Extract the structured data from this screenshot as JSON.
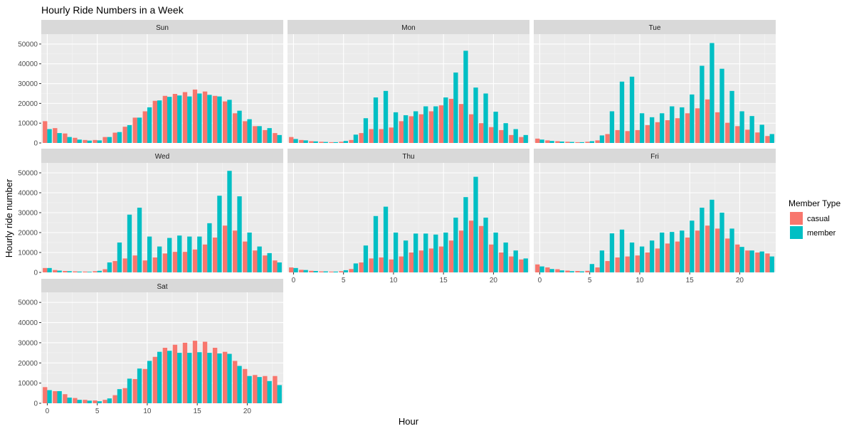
{
  "chart_data": {
    "type": "bar",
    "title": "Hourly Ride Numbers in a Week",
    "xlabel": "Hour",
    "ylabel": "Hourly ride number",
    "ylim": [
      0,
      55000
    ],
    "y_ticks": [
      0,
      10000,
      20000,
      30000,
      40000,
      50000
    ],
    "x_ticks": [
      0,
      5,
      10,
      15,
      20
    ],
    "hours": [
      0,
      1,
      2,
      3,
      4,
      5,
      6,
      7,
      8,
      9,
      10,
      11,
      12,
      13,
      14,
      15,
      16,
      17,
      18,
      19,
      20,
      21,
      22,
      23
    ],
    "grid": true,
    "facet_layout": "3x3 facet grid, panels Sun–Tue, Wed–Fri, Sat",
    "legend": {
      "title": "Member Type",
      "position": "right",
      "entries": [
        {
          "name": "casual",
          "color": "#F8766D"
        },
        {
          "name": "member",
          "color": "#00BFC4"
        }
      ]
    },
    "facets": [
      {
        "day": "Sun",
        "casual": [
          11000,
          7500,
          4800,
          2600,
          1500,
          1500,
          3000,
          5200,
          8200,
          12800,
          16000,
          21300,
          23800,
          24800,
          25700,
          27000,
          26000,
          23800,
          21000,
          15000,
          11000,
          8500,
          6500,
          5000
        ],
        "member": [
          7000,
          5000,
          3000,
          1700,
          1200,
          1300,
          3000,
          5500,
          9000,
          12800,
          18000,
          21500,
          23300,
          24000,
          23500,
          25000,
          24300,
          23500,
          21800,
          16300,
          12000,
          8500,
          7500,
          4000
        ]
      },
      {
        "day": "Mon",
        "casual": [
          3000,
          1500,
          900,
          600,
          400,
          600,
          1500,
          5000,
          7000,
          7000,
          7800,
          11000,
          13500,
          14500,
          16000,
          19000,
          22300,
          19700,
          14500,
          10000,
          8000,
          6500,
          4000,
          3000
        ],
        "member": [
          2000,
          1300,
          800,
          500,
          400,
          1000,
          4200,
          12500,
          23000,
          26300,
          15500,
          14000,
          16000,
          18500,
          18500,
          23000,
          35600,
          46600,
          28000,
          25000,
          15800,
          10000,
          7000,
          4000
        ]
      },
      {
        "day": "Tue",
        "casual": [
          2200,
          1300,
          900,
          600,
          400,
          600,
          1300,
          4500,
          6500,
          6000,
          6500,
          9000,
          10500,
          11500,
          12500,
          15000,
          17500,
          22000,
          15500,
          10200,
          8500,
          6700,
          5300,
          3500
        ],
        "member": [
          1700,
          1000,
          700,
          500,
          400,
          900,
          3800,
          16000,
          31000,
          33500,
          15000,
          13000,
          15000,
          18500,
          18000,
          24500,
          39000,
          50500,
          37500,
          26300,
          16000,
          13600,
          9200,
          4500
        ]
      },
      {
        "day": "Wed",
        "casual": [
          2200,
          1200,
          700,
          500,
          400,
          600,
          1600,
          5700,
          7000,
          8500,
          6000,
          7500,
          9500,
          10300,
          10300,
          11500,
          14000,
          17500,
          23500,
          21000,
          15500,
          11000,
          8500,
          6000
        ],
        "member": [
          2200,
          900,
          600,
          400,
          300,
          800,
          5000,
          15000,
          29000,
          32500,
          18000,
          13000,
          17300,
          18500,
          18000,
          18000,
          24700,
          38500,
          51000,
          38200,
          20000,
          13000,
          9700,
          5000
        ]
      },
      {
        "day": "Thu",
        "casual": [
          2500,
          1300,
          800,
          500,
          400,
          600,
          1700,
          5000,
          7000,
          7500,
          6500,
          8000,
          10000,
          11000,
          12000,
          13000,
          16000,
          21000,
          26000,
          23300,
          14000,
          10000,
          8000,
          6500
        ],
        "member": [
          2200,
          1200,
          700,
          500,
          400,
          1100,
          4500,
          13500,
          28300,
          33000,
          20000,
          16000,
          19500,
          19500,
          19000,
          20000,
          27500,
          37800,
          48000,
          27500,
          20000,
          15000,
          11000,
          7000
        ]
      },
      {
        "day": "Fri",
        "casual": [
          4000,
          2500,
          1600,
          900,
          700,
          800,
          2500,
          5700,
          7500,
          8000,
          8500,
          10000,
          12000,
          14500,
          15500,
          17500,
          21000,
          23500,
          22000,
          17000,
          14000,
          11000,
          10000,
          9500
        ],
        "member": [
          3000,
          1700,
          1000,
          600,
          500,
          4200,
          11000,
          19600,
          21500,
          15000,
          13000,
          16000,
          20000,
          20300,
          21000,
          26000,
          32500,
          36500,
          30000,
          22000,
          12800,
          11000,
          10500,
          8000
        ]
      },
      {
        "day": "Sat",
        "casual": [
          8000,
          6000,
          4500,
          2600,
          1700,
          1400,
          1700,
          4000,
          7500,
          12000,
          17000,
          23000,
          27500,
          29000,
          30000,
          31000,
          30500,
          27500,
          25500,
          21000,
          17000,
          14000,
          13500,
          13500
        ],
        "member": [
          6500,
          6000,
          2800,
          1700,
          1300,
          1000,
          2400,
          7000,
          12200,
          17200,
          21000,
          25500,
          26000,
          25000,
          25000,
          25300,
          25000,
          24700,
          24500,
          18500,
          13500,
          13000,
          11000,
          9000
        ]
      }
    ]
  }
}
